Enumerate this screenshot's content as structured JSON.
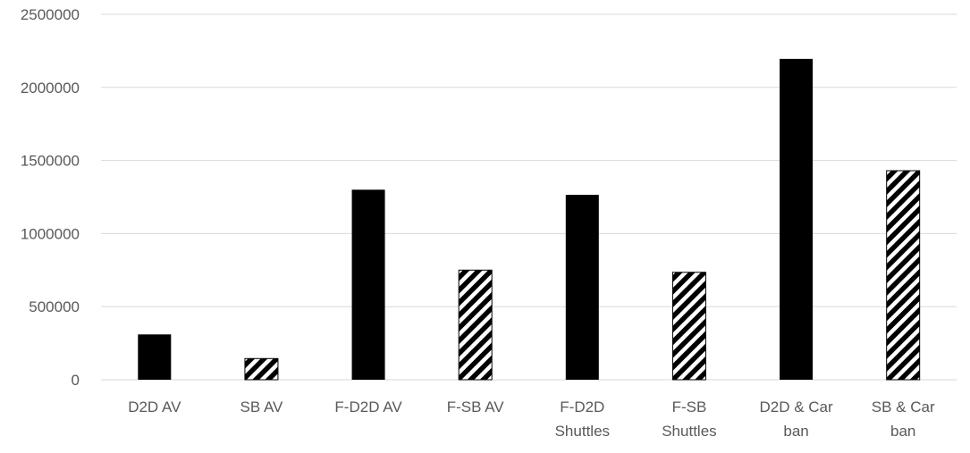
{
  "chart_data": {
    "type": "bar",
    "title": "",
    "xlabel": "",
    "ylabel": "",
    "ylim": [
      0,
      2500000
    ],
    "yticks": [
      "0",
      "500000",
      "1000000",
      "1500000",
      "2000000",
      "2500000"
    ],
    "grid": true,
    "legend": "none",
    "categories": [
      [
        "D2D AV"
      ],
      [
        "SB AV"
      ],
      [
        "F-D2D AV"
      ],
      [
        "F-SB AV"
      ],
      [
        "F-D2D",
        "Shuttles"
      ],
      [
        "F-SB",
        "Shuttles"
      ],
      [
        "D2D & Car",
        "ban"
      ],
      [
        "SB & Car",
        "ban"
      ]
    ],
    "values": [
      310000,
      145000,
      1300000,
      750000,
      1265000,
      735000,
      2195000,
      1430000
    ],
    "patterns": [
      "solid",
      "hatched",
      "solid",
      "hatched",
      "solid",
      "hatched",
      "solid",
      "hatched"
    ],
    "colors": {
      "bar": "#000000",
      "hatch_bg": "#ffffff",
      "grid": "#d9d9d9",
      "text": "#595959"
    }
  }
}
